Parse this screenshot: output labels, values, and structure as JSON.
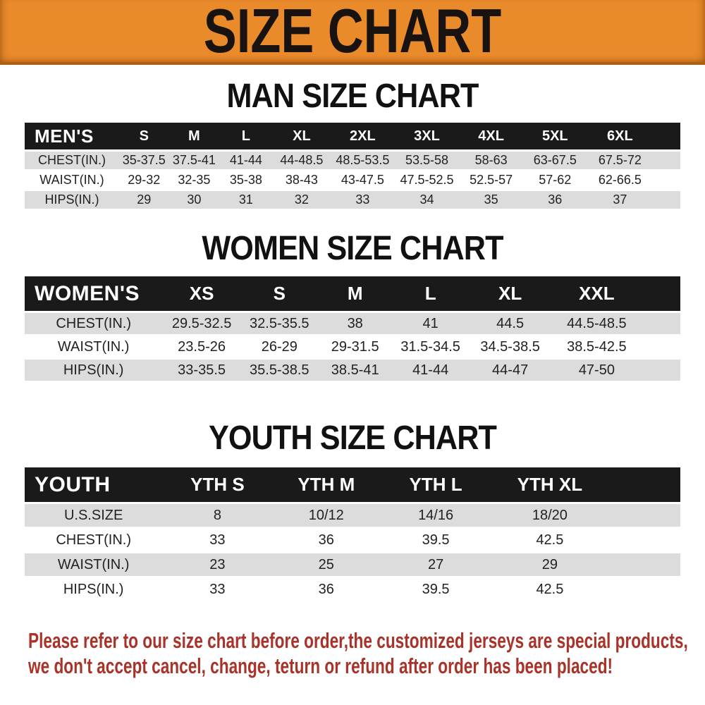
{
  "banner": {
    "title": "SIZE CHART"
  },
  "sections": [
    {
      "title": "MAN SIZE CHART",
      "header_label": "MEN'S",
      "columns": [
        "S",
        "M",
        "L",
        "XL",
        "2XL",
        "3XL",
        "4XL",
        "5XL",
        "6XL"
      ],
      "rows": [
        {
          "label": "CHEST(IN.)",
          "values": [
            "35-37.5",
            "37.5-41",
            "41-44",
            "44-48.5",
            "48.5-53.5",
            "53.5-58",
            "58-63",
            "63-67.5",
            "67.5-72"
          ]
        },
        {
          "label": "WAIST(IN.)",
          "values": [
            "29-32",
            "32-35",
            "35-38",
            "38-43",
            "43-47.5",
            "47.5-52.5",
            "52.5-57",
            "57-62",
            "62-66.5"
          ]
        },
        {
          "label": "HIPS(IN.)",
          "values": [
            "29",
            "30",
            "31",
            "32",
            "33",
            "34",
            "35",
            "36",
            "37"
          ]
        }
      ]
    },
    {
      "title": "WOMEN SIZE CHART",
      "header_label": "WOMEN'S",
      "columns": [
        "XS",
        "S",
        "M",
        "L",
        "XL",
        "XXL"
      ],
      "rows": [
        {
          "label": "CHEST(IN.)",
          "values": [
            "29.5-32.5",
            "32.5-35.5",
            "38",
            "41",
            "44.5",
            "44.5-48.5"
          ]
        },
        {
          "label": "WAIST(IN.)",
          "values": [
            "23.5-26",
            "26-29",
            "29-31.5",
            "31.5-34.5",
            "34.5-38.5",
            "38.5-42.5"
          ]
        },
        {
          "label": "HIPS(IN.)",
          "values": [
            "33-35.5",
            "35.5-38.5",
            "38.5-41",
            "41-44",
            "44-47",
            "47-50"
          ]
        }
      ]
    },
    {
      "title": "YOUTH SIZE CHART",
      "header_label": "YOUTH",
      "columns": [
        "YTH S",
        "YTH M",
        "YTH L",
        "YTH XL"
      ],
      "rows": [
        {
          "label": "U.S.SIZE",
          "values": [
            "8",
            "10/12",
            "14/16",
            "18/20"
          ]
        },
        {
          "label": "CHEST(IN.)",
          "values": [
            "33",
            "36",
            "39.5",
            "42.5"
          ]
        },
        {
          "label": "WAIST(IN.)",
          "values": [
            "23",
            "25",
            "27",
            "29"
          ]
        },
        {
          "label": "HIPS(IN.)",
          "values": [
            "33",
            "36",
            "39.5",
            "42.5"
          ]
        }
      ]
    }
  ],
  "disclaimer": {
    "lines": [
      "Please refer to our size chart before order,the customized jerseys are special products,",
      "we don't accept cancel, change, teturn or refund after order has been placed!"
    ]
  },
  "colors": {
    "banner-bg": "#e98a2b",
    "bar": "#1a1a1a",
    "stripe": "#dcdcdc",
    "disclaimer": "#a93229"
  }
}
